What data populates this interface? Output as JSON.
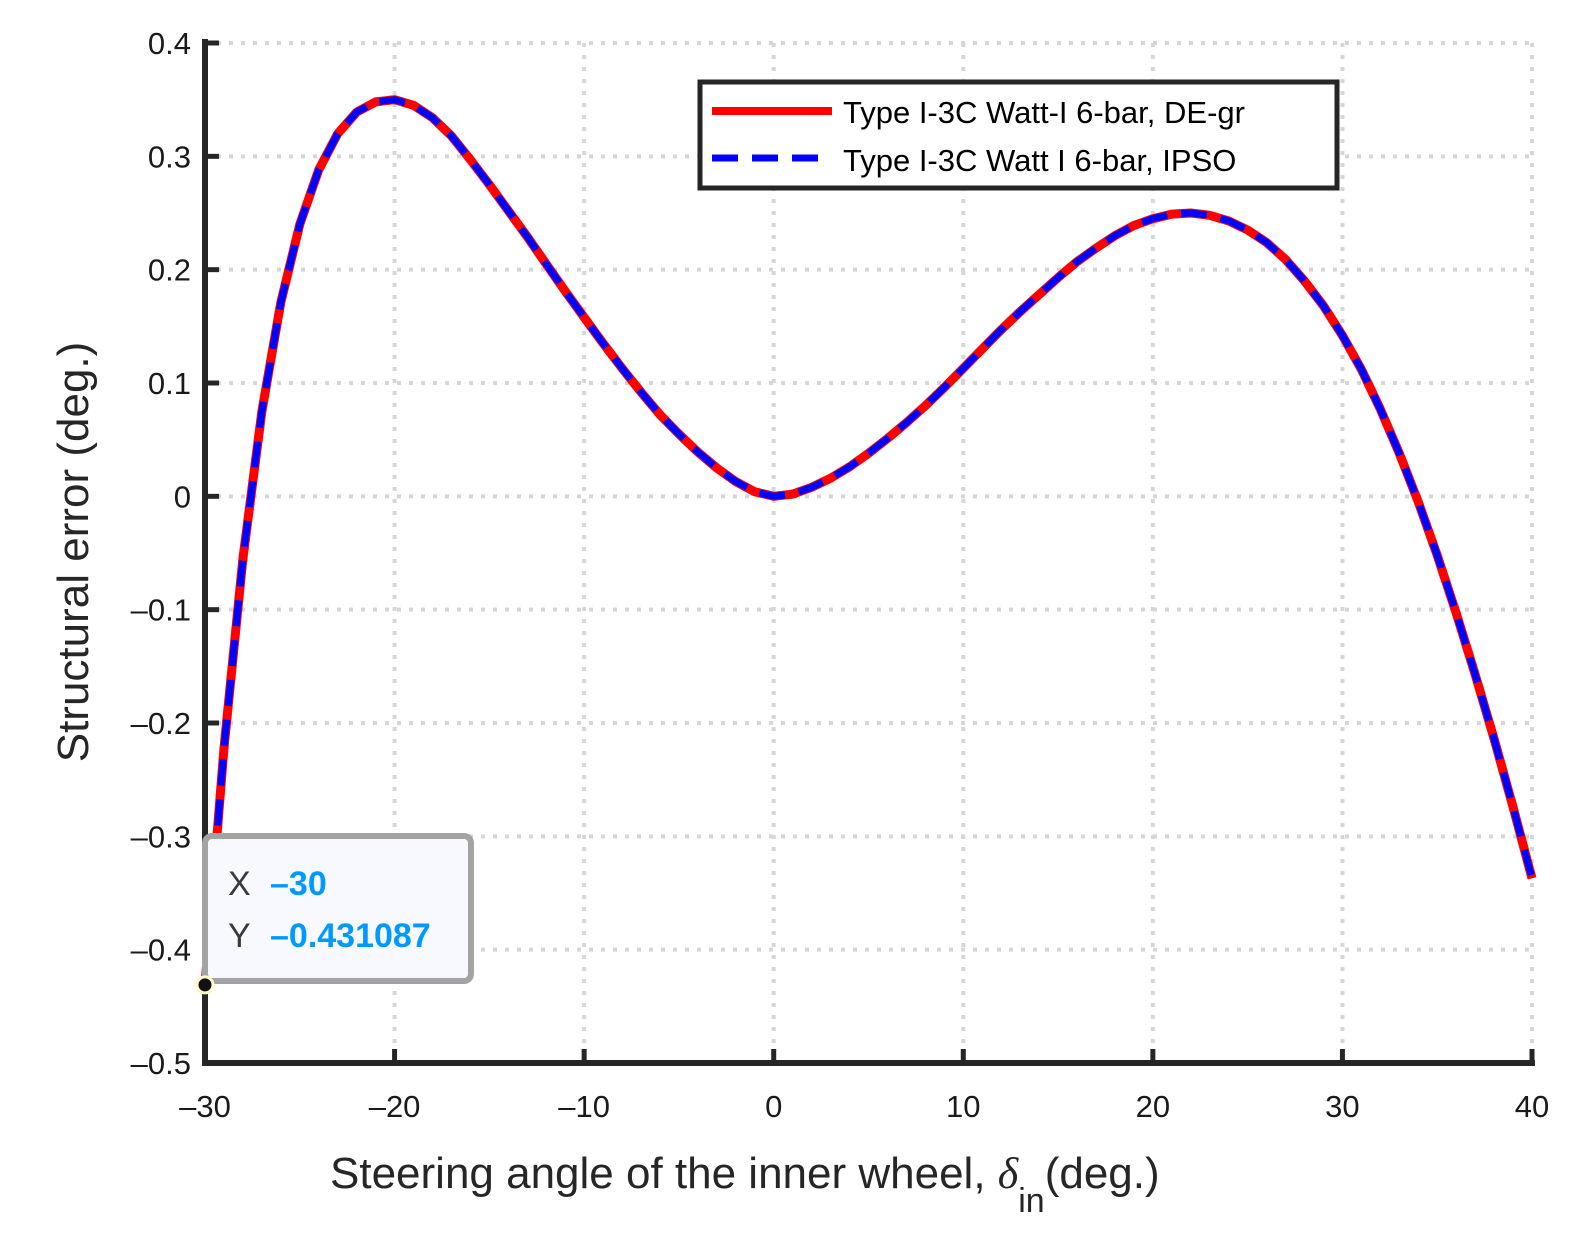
{
  "chart_data": {
    "type": "line",
    "title": "",
    "xlabel_prefix": "Steering angle of the inner wheel, ",
    "xlabel_symbol": "δ",
    "xlabel_subscript": "in",
    "xlabel_suffix": "(deg.)",
    "ylabel": "Structural error (deg.)",
    "xlim": [
      -30,
      40
    ],
    "ylim": [
      -0.5,
      0.4
    ],
    "xticks": [
      -30,
      -20,
      -10,
      0,
      10,
      20,
      30,
      40
    ],
    "yticks": [
      -0.5,
      -0.4,
      -0.3,
      -0.2,
      -0.1,
      0,
      0.1,
      0.2,
      0.3,
      0.4
    ],
    "xtick_labels": [
      "–30",
      "–20",
      "–10",
      "0",
      "10",
      "20",
      "30",
      "40"
    ],
    "ytick_labels": [
      "–0.5",
      "–0.4",
      "–0.3",
      "–0.2",
      "–0.1",
      "0",
      "0.1",
      "0.2",
      "0.3",
      "0.4"
    ],
    "grid": true,
    "legend_position": "top-right",
    "x": [
      -30,
      -29,
      -28,
      -27,
      -26,
      -25,
      -24,
      -23,
      -22,
      -21,
      -20,
      -19,
      -18,
      -17,
      -16,
      -15,
      -14,
      -13,
      -12,
      -11,
      -10,
      -9,
      -8,
      -7,
      -6,
      -5,
      -4,
      -3,
      -2,
      -1,
      0,
      1,
      2,
      3,
      4,
      5,
      6,
      7,
      8,
      9,
      10,
      11,
      12,
      13,
      14,
      15,
      16,
      17,
      18,
      19,
      20,
      21,
      22,
      23,
      24,
      25,
      26,
      27,
      28,
      29,
      30,
      31,
      32,
      33,
      34,
      35,
      36,
      37,
      38,
      39,
      40
    ],
    "series": [
      {
        "name": "Type I-3C Watt-I 6-bar, DE-gr",
        "color": "#ff0000",
        "style": "solid",
        "values": [
          -0.4311,
          -0.222,
          -0.055,
          0.075,
          0.171,
          0.24,
          0.288,
          0.32,
          0.339,
          0.348,
          0.35,
          0.345,
          0.334,
          0.318,
          0.297,
          0.275,
          0.252,
          0.229,
          0.205,
          0.181,
          0.158,
          0.135,
          0.113,
          0.092,
          0.072,
          0.055,
          0.039,
          0.025,
          0.013,
          0.004,
          0.0,
          0.002,
          0.008,
          0.016,
          0.026,
          0.038,
          0.051,
          0.065,
          0.08,
          0.096,
          0.113,
          0.13,
          0.147,
          0.163,
          0.178,
          0.193,
          0.207,
          0.219,
          0.23,
          0.239,
          0.245,
          0.249,
          0.25,
          0.248,
          0.243,
          0.235,
          0.224,
          0.209,
          0.19,
          0.168,
          0.142,
          0.112,
          0.077,
          0.038,
          -0.005,
          -0.052,
          -0.103,
          -0.157,
          -0.214,
          -0.274,
          -0.337
        ]
      },
      {
        "name": "Type I-3C Watt I 6-bar, IPSO",
        "color": "#0000ff",
        "style": "dashed",
        "values": [
          -0.4311,
          -0.222,
          -0.055,
          0.075,
          0.171,
          0.24,
          0.288,
          0.32,
          0.339,
          0.348,
          0.35,
          0.345,
          0.334,
          0.318,
          0.297,
          0.275,
          0.252,
          0.229,
          0.205,
          0.181,
          0.158,
          0.135,
          0.113,
          0.092,
          0.072,
          0.055,
          0.039,
          0.025,
          0.013,
          0.004,
          0.0,
          0.002,
          0.008,
          0.016,
          0.026,
          0.038,
          0.051,
          0.065,
          0.08,
          0.096,
          0.113,
          0.13,
          0.147,
          0.163,
          0.178,
          0.193,
          0.207,
          0.219,
          0.23,
          0.239,
          0.245,
          0.249,
          0.25,
          0.248,
          0.243,
          0.235,
          0.224,
          0.209,
          0.19,
          0.168,
          0.142,
          0.112,
          0.077,
          0.038,
          -0.005,
          -0.052,
          -0.103,
          -0.157,
          -0.214,
          -0.274,
          -0.337
        ]
      }
    ],
    "datatip": {
      "x_label": "X",
      "x_value": "–30",
      "y_label": "Y",
      "y_value": "–0.431087",
      "x": -30,
      "y": -0.431087,
      "value_color": "#0099ff"
    }
  }
}
